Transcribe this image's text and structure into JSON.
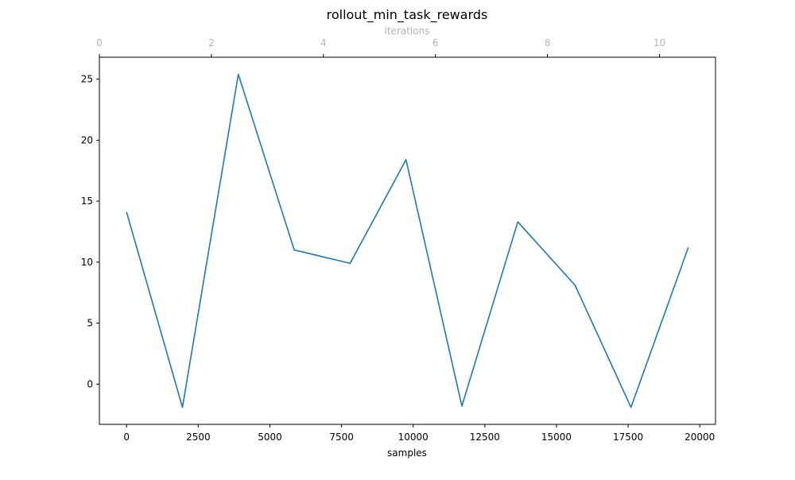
{
  "chart_data": {
    "type": "line",
    "title": "rollout_min_task_rewards",
    "xlabel": "samples",
    "ylabel": "",
    "secondary_xlabel": "iterations",
    "xlim": [
      -950,
      20550
    ],
    "ylim": [
      -3.3,
      26.8
    ],
    "secondary_xlim": [
      0,
      11
    ],
    "x_ticks": [
      0,
      2500,
      5000,
      7500,
      10000,
      12500,
      15000,
      17500,
      20000
    ],
    "y_ticks": [
      0,
      5,
      10,
      15,
      20,
      25
    ],
    "secondary_x_ticks": [
      0,
      2,
      4,
      6,
      8,
      10
    ],
    "grid": false,
    "line_color": "#1f77b4",
    "series": [
      {
        "x": [
          0,
          1950,
          3900,
          5850,
          7800,
          9750,
          11700,
          13650,
          15650,
          17600,
          19600
        ],
        "y": [
          14.1,
          -1.9,
          25.4,
          11.0,
          9.9,
          18.4,
          -1.8,
          13.3,
          8.1,
          -1.9,
          11.2
        ]
      }
    ]
  }
}
